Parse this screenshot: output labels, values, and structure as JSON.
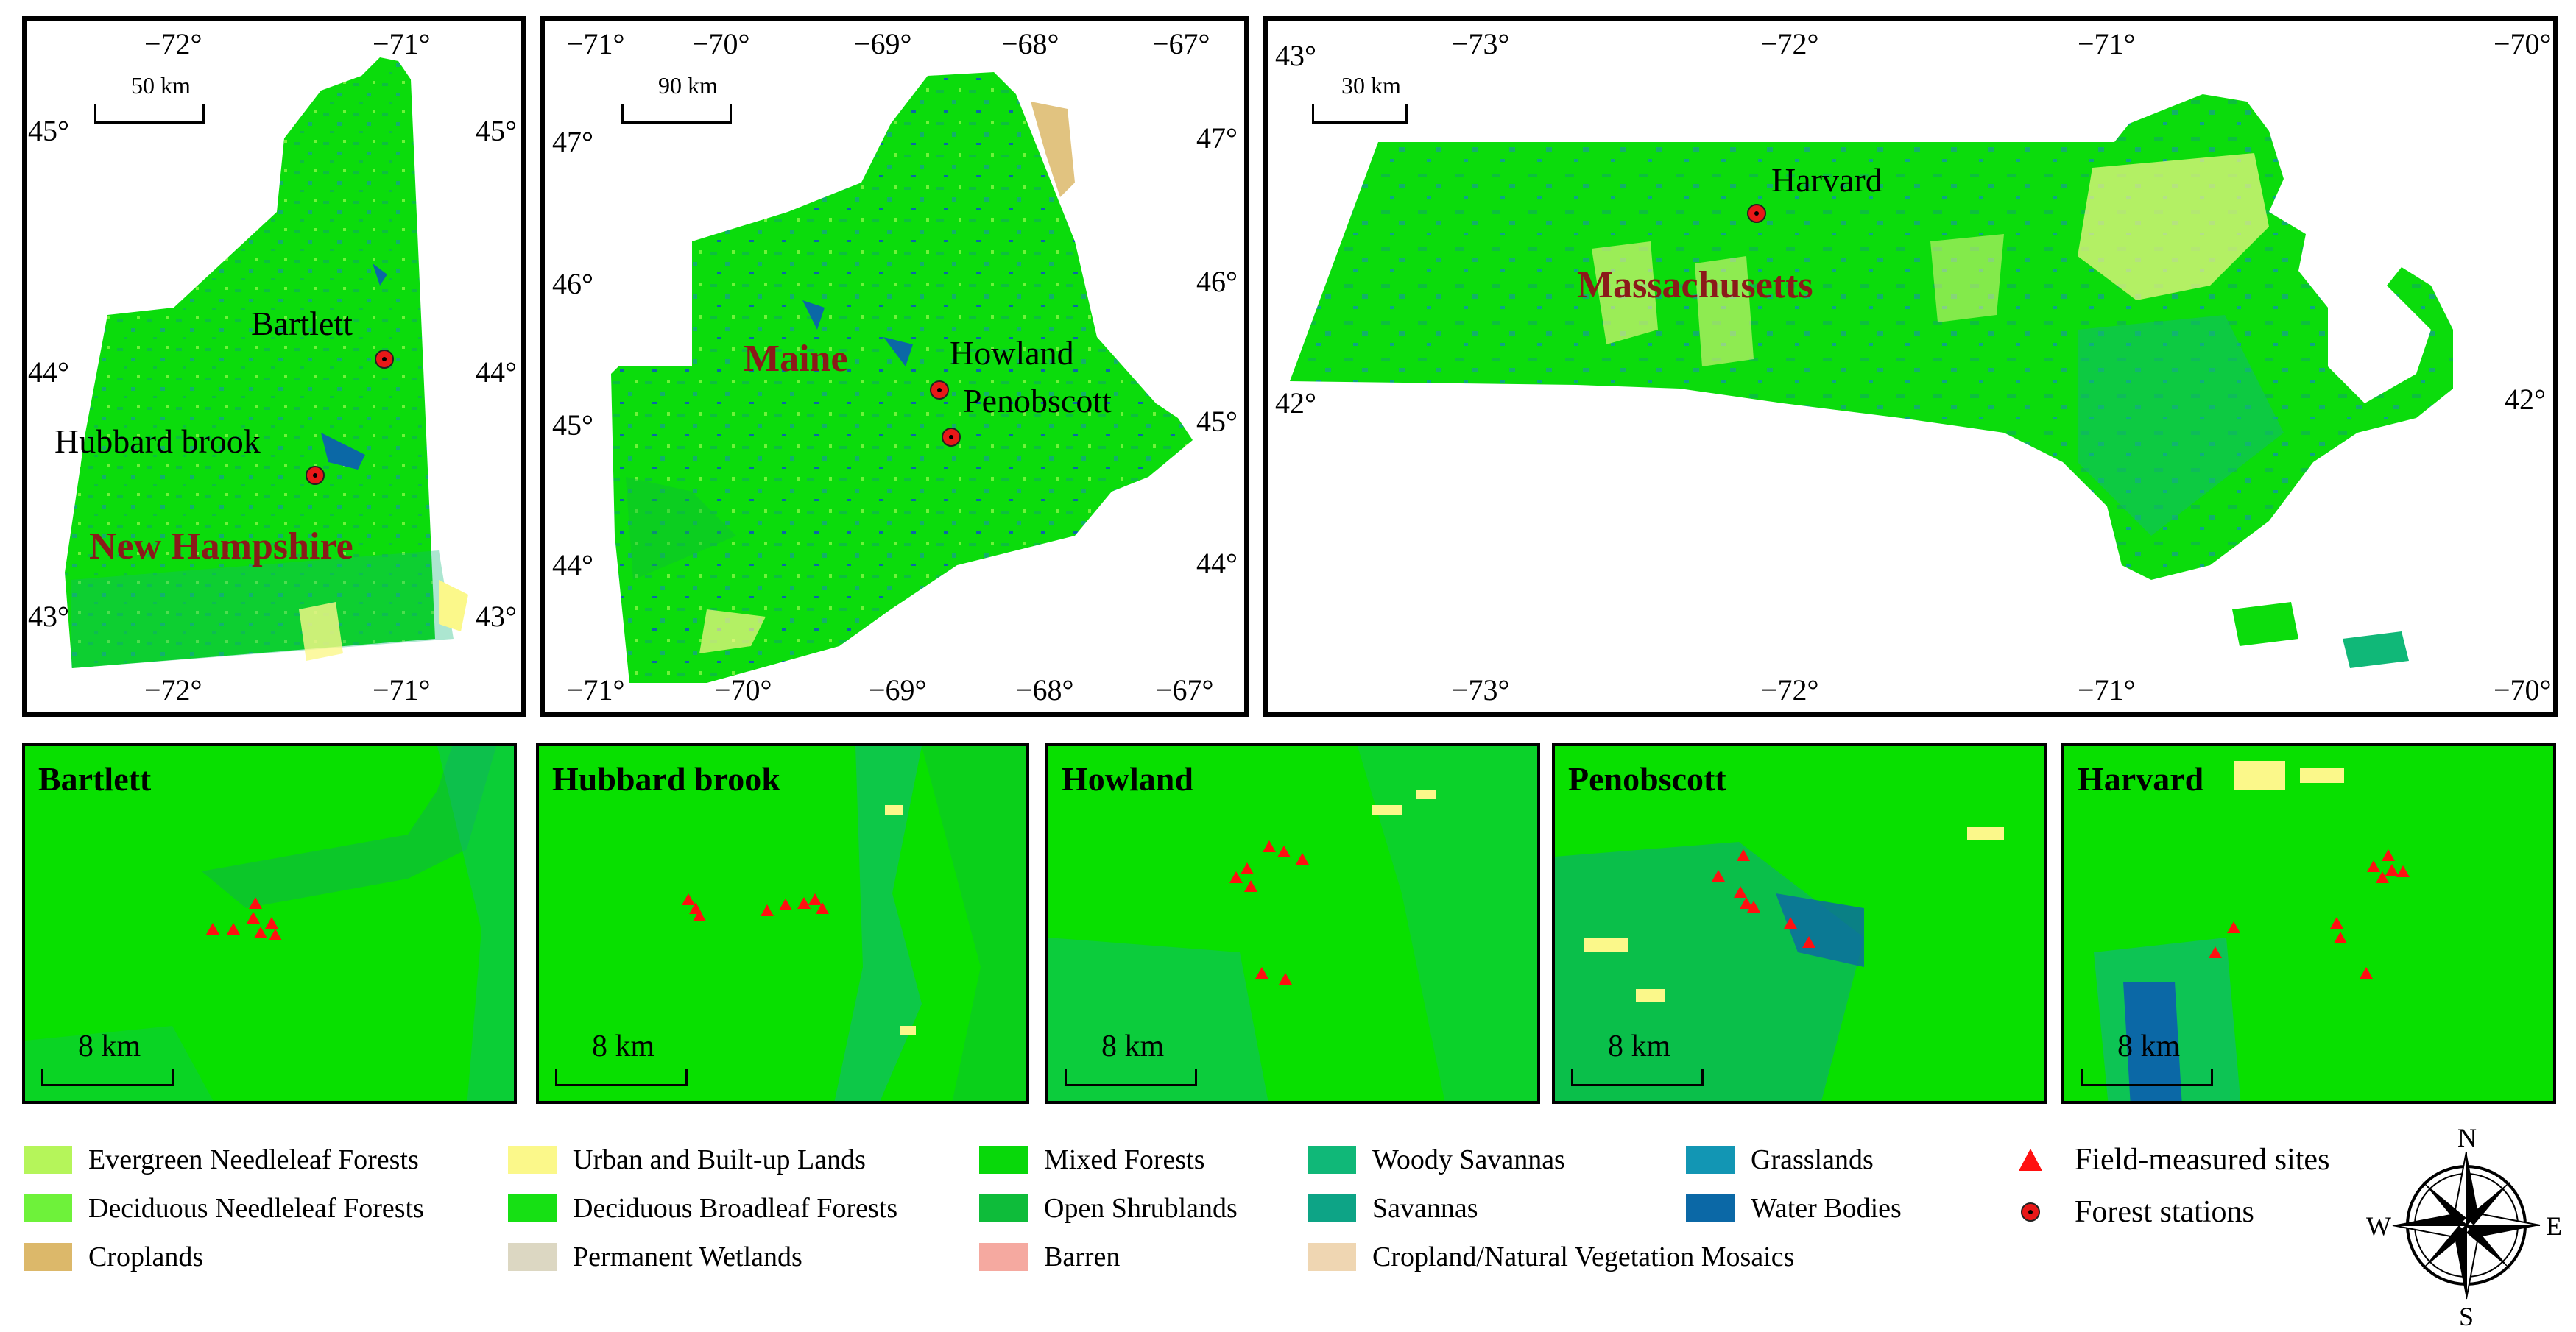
{
  "maps": {
    "nh": {
      "lon_ticks_top": [
        "−72°",
        "−71°"
      ],
      "lon_ticks_bottom": [
        "−72°",
        "−71°"
      ],
      "lat_ticks_left": [
        "45°",
        "44°",
        "43°"
      ],
      "lat_ticks_right": [
        "45°",
        "44°",
        "43°"
      ],
      "scale": "50 km",
      "state": "New Hampshire",
      "stations": [
        "Bartlett",
        "Hubbard brook"
      ]
    },
    "me": {
      "lon_ticks_top": [
        "−71°",
        "−70°",
        "−69°",
        "−68°",
        "−67°"
      ],
      "lon_ticks_bottom": [
        "−71°",
        "−70°",
        "−69°",
        "−68°",
        "−67°"
      ],
      "lat_ticks_left": [
        "47°",
        "46°",
        "45°",
        "44°"
      ],
      "lat_ticks_right": [
        "47°",
        "46°",
        "45°",
        "44°"
      ],
      "scale": "90 km",
      "state": "Maine",
      "stations": [
        "Howland",
        "Penobscott"
      ]
    },
    "ma": {
      "lon_ticks_top": [
        "−73°",
        "−72°",
        "−71°",
        "−70°"
      ],
      "lon_ticks_bottom": [
        "−73°",
        "−72°",
        "−71°",
        "−70°"
      ],
      "lat_ticks_left": [
        "43°",
        "42°"
      ],
      "lat_ticks_right": [
        "42°"
      ],
      "scale": "30 km",
      "state": "Massachusetts",
      "stations": [
        "Harvard"
      ]
    }
  },
  "zooms": [
    {
      "title": "Bartlett",
      "scale": "8 km"
    },
    {
      "title": "Hubbard brook",
      "scale": "8 km"
    },
    {
      "title": "Howland",
      "scale": "8 km"
    },
    {
      "title": "Penobscott",
      "scale": "8 km"
    },
    {
      "title": "Harvard",
      "scale": "8 km"
    }
  ],
  "legend": {
    "classes": [
      {
        "label": "Evergreen Needleleaf Forests",
        "color": "#b5f55a"
      },
      {
        "label": "Deciduous Needleleaf Forests",
        "color": "#6ef23a"
      },
      {
        "label": "Croplands",
        "color": "#dcb86a"
      },
      {
        "label": "Urban and Built-up Lands",
        "color": "#fbf88a"
      },
      {
        "label": "Deciduous Broadleaf Forests",
        "color": "#16e014"
      },
      {
        "label": "Permanent Wetlands",
        "color": "#dcd7c2"
      },
      {
        "label": "Mixed Forests",
        "color": "#08d80a"
      },
      {
        "label": "Open Shrublands",
        "color": "#0ebc3a"
      },
      {
        "label": "Barren",
        "color": "#f5a9a0"
      },
      {
        "label": "Woody Savannas",
        "color": "#10b878"
      },
      {
        "label": "Savannas",
        "color": "#0da486"
      },
      {
        "label": "Cropland/Natural Vegetation Mosaics",
        "color": "#efd6b2"
      },
      {
        "label": "Grasslands",
        "color": "#1296b4"
      },
      {
        "label": "Water Bodies",
        "color": "#0b68a6"
      }
    ],
    "field_sites": "Field-measured sites",
    "forest_stations": "Forest stations",
    "field_site_color": "#ff1010",
    "station_color": "#e81818"
  },
  "compass": {
    "n": "N",
    "s": "S",
    "e": "E",
    "w": "W"
  }
}
